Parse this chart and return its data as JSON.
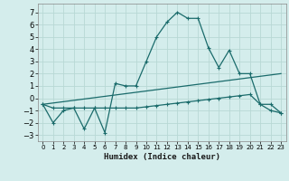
{
  "xlabel": "Humidex (Indice chaleur)",
  "bg_color": "#d4edec",
  "grid_color": "#b8d8d5",
  "line_color": "#1a6b6b",
  "xlim": [
    -0.5,
    23.5
  ],
  "ylim": [
    -3.5,
    7.7
  ],
  "xticks": [
    0,
    1,
    2,
    3,
    4,
    5,
    6,
    7,
    8,
    9,
    10,
    11,
    12,
    13,
    14,
    15,
    16,
    17,
    18,
    19,
    20,
    21,
    22,
    23
  ],
  "yticks": [
    -3,
    -2,
    -1,
    0,
    1,
    2,
    3,
    4,
    5,
    6,
    7
  ],
  "series1_x": [
    0,
    1,
    2,
    3,
    4,
    5,
    6,
    7,
    8,
    9,
    10,
    11,
    12,
    13,
    14,
    15,
    16,
    17,
    18,
    19,
    20,
    21,
    22,
    23
  ],
  "series1_y": [
    -0.5,
    -2.0,
    -1.0,
    -0.8,
    -2.5,
    -0.8,
    -2.8,
    1.2,
    1.0,
    1.0,
    3.0,
    5.0,
    6.2,
    7.0,
    6.5,
    6.5,
    4.1,
    2.5,
    3.9,
    2.0,
    2.0,
    -0.5,
    -0.5,
    -1.2
  ],
  "series2_x": [
    0,
    1,
    2,
    3,
    4,
    5,
    6,
    7,
    8,
    9,
    10,
    11,
    12,
    13,
    14,
    15,
    16,
    17,
    18,
    19,
    20,
    21,
    22,
    23
  ],
  "series2_y": [
    -0.5,
    -0.8,
    -0.8,
    -0.8,
    -0.8,
    -0.8,
    -0.8,
    -0.8,
    -0.8,
    -0.8,
    -0.7,
    -0.6,
    -0.5,
    -0.4,
    -0.3,
    -0.2,
    -0.1,
    0.0,
    0.1,
    0.2,
    0.3,
    -0.5,
    -1.0,
    -1.2
  ],
  "series3_x": [
    0,
    23
  ],
  "series3_y": [
    -0.5,
    2.0
  ]
}
